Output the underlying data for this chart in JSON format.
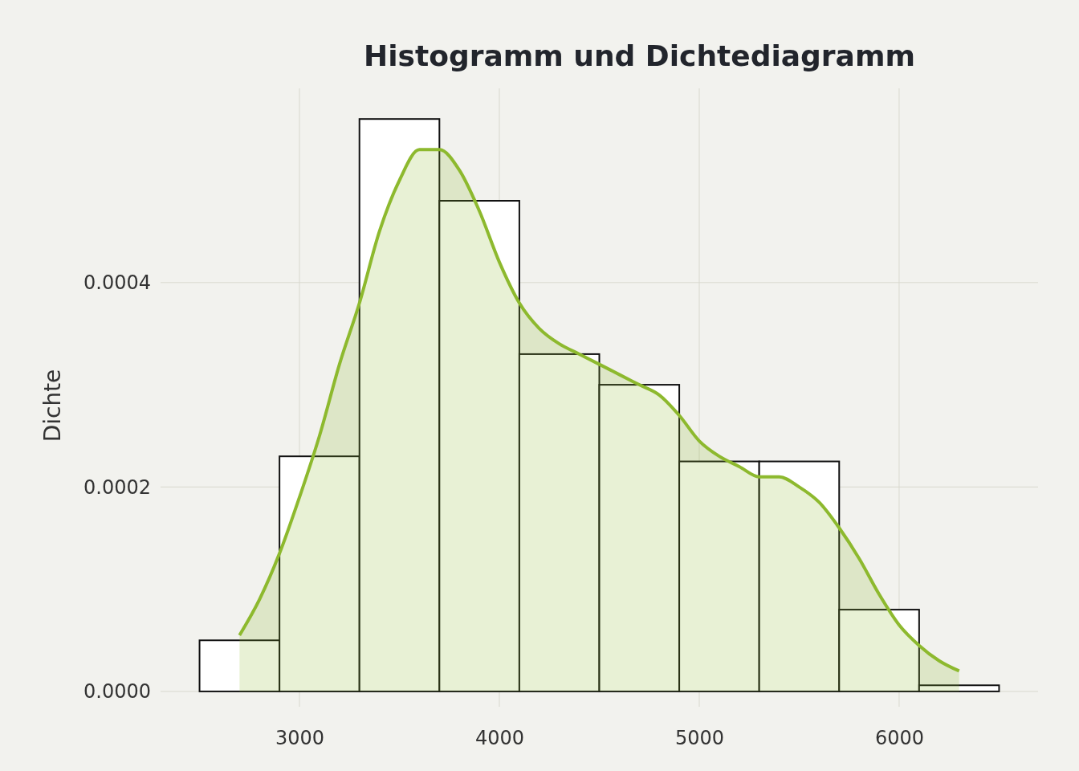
{
  "chart_data": {
    "type": "histogram",
    "title": "Histogramm und Dichtediagramm",
    "ylabel": "Dichte",
    "bins": [
      2500,
      2900,
      3300,
      3700,
      4100,
      4500,
      4900,
      5300,
      5700,
      6100,
      6500
    ],
    "values": [
      5e-05,
      0.00023,
      0.00056,
      0.00048,
      0.00033,
      0.0003,
      0.000225,
      0.000225,
      8e-05,
      6e-06
    ],
    "color": "#ffffff",
    "series": [
      {
        "type": "area",
        "color": "#8db92e",
        "x": [
          2700,
          2800,
          2900,
          3000,
          3100,
          3200,
          3300,
          3400,
          3500,
          3600,
          3650,
          3700,
          3800,
          3900,
          4000,
          4100,
          4200,
          4300,
          4400,
          4500,
          4600,
          4700,
          4800,
          4900,
          5000,
          5100,
          5200,
          5300,
          5400,
          5500,
          5600,
          5700,
          5800,
          5900,
          6000,
          6100,
          6200,
          6300
        ],
        "values": [
          5.5e-05,
          9e-05,
          0.000135,
          0.00019,
          0.00025,
          0.00032,
          0.00038,
          0.00045,
          0.0005,
          0.00053,
          0.00053,
          0.00053,
          0.00051,
          0.00047,
          0.00042,
          0.00038,
          0.000355,
          0.00034,
          0.00033,
          0.00032,
          0.00031,
          0.0003,
          0.00029,
          0.00027,
          0.000245,
          0.00023,
          0.00022,
          0.00021,
          0.00021,
          0.0002,
          0.000185,
          0.00016,
          0.00013,
          9.5e-05,
          6.5e-05,
          4.5e-05,
          3e-05,
          2e-05
        ]
      }
    ],
    "xlim": [
      2305,
      6695
    ],
    "ylim": [
      -1.5e-05,
      0.00059
    ],
    "xticks": [
      3000,
      4000,
      5000,
      6000
    ],
    "yticks": [
      {
        "value": 0,
        "label": "0.0000"
      },
      {
        "value": 0.0002,
        "label": "0.0002"
      },
      {
        "value": 0.0004,
        "label": "0.0004"
      }
    ],
    "grid": true
  }
}
